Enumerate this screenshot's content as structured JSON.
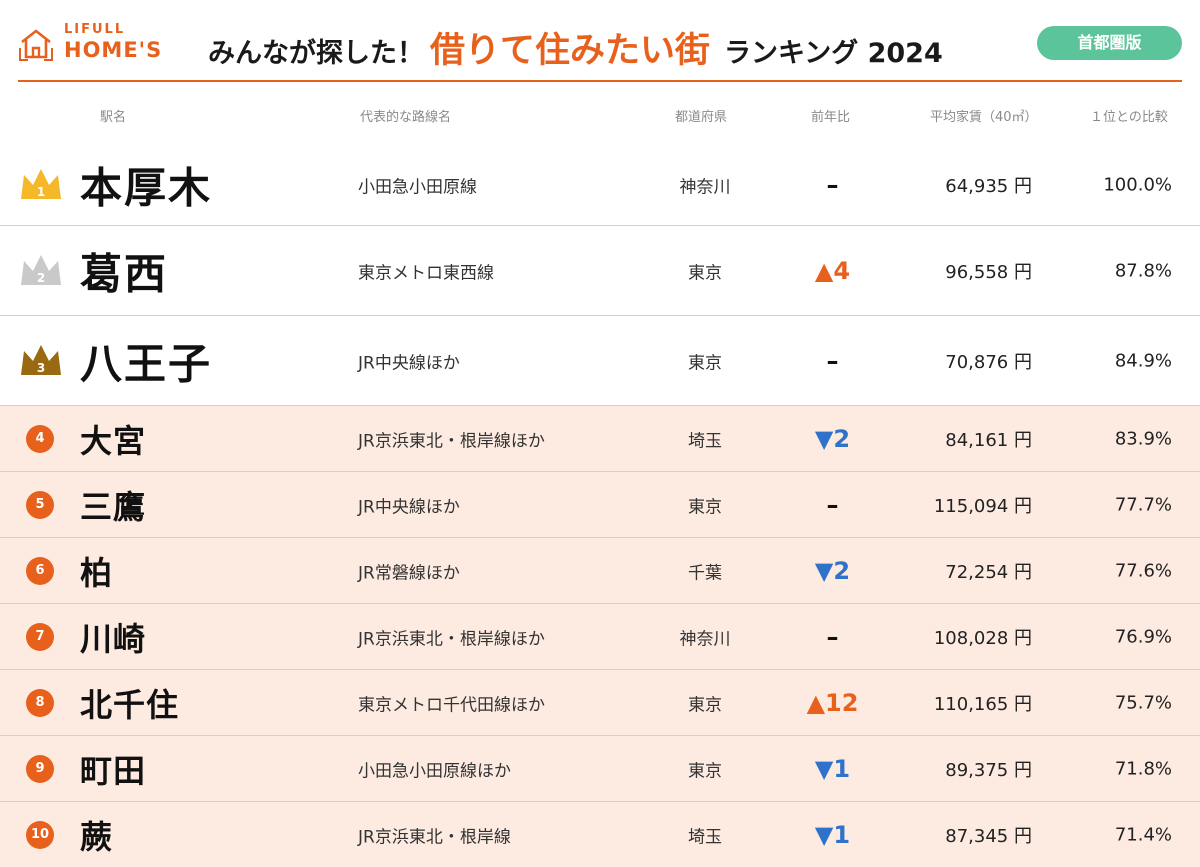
{
  "brand": {
    "small": "LIFULL",
    "big": "HOME'S"
  },
  "title": {
    "prefix": "みんなが探した！",
    "highlight": "借りて住みたい街",
    "suffix": "ランキング 2024"
  },
  "badge": "首都圏版",
  "columns": {
    "station": "駅名",
    "line": "代表的な路線名",
    "prefecture": "都道府県",
    "change": "前年比",
    "rent": "平均家賃（40㎡）",
    "ratio": "１位との比較"
  },
  "colors": {
    "accent": "#e8611c",
    "badge": "#5cc49a",
    "up": "#e8611c",
    "down": "#2f72c9",
    "gold": "#f5b829",
    "silver": "#c9c9c9",
    "bronze": "#9a6a12"
  },
  "rows": [
    {
      "rank": "1",
      "name": "本厚木",
      "line": "小田急小田原線",
      "prefecture": "神奈川",
      "change": "–",
      "trend": "same",
      "rent": "64,935 円",
      "ratio": "100.0%",
      "crown": "gold"
    },
    {
      "rank": "2",
      "name": "葛西",
      "line": "東京メトロ東西線",
      "prefecture": "東京",
      "change": "▲4",
      "trend": "up",
      "rent": "96,558 円",
      "ratio": "87.8%",
      "crown": "silver"
    },
    {
      "rank": "3",
      "name": "八王子",
      "line": "JR中央線ほか",
      "prefecture": "東京",
      "change": "–",
      "trend": "same",
      "rent": "70,876 円",
      "ratio": "84.9%",
      "crown": "bronze"
    },
    {
      "rank": "4",
      "name": "大宮",
      "line": "JR京浜東北・根岸線ほか",
      "prefecture": "埼玉",
      "change": "▼2",
      "trend": "down",
      "rent": "84,161 円",
      "ratio": "83.9%"
    },
    {
      "rank": "5",
      "name": "三鷹",
      "line": "JR中央線ほか",
      "prefecture": "東京",
      "change": "–",
      "trend": "same",
      "rent": "115,094 円",
      "ratio": "77.7%"
    },
    {
      "rank": "6",
      "name": "柏",
      "line": "JR常磐線ほか",
      "prefecture": "千葉",
      "change": "▼2",
      "trend": "down",
      "rent": "72,254 円",
      "ratio": "77.6%"
    },
    {
      "rank": "7",
      "name": "川崎",
      "line": "JR京浜東北・根岸線ほか",
      "prefecture": "神奈川",
      "change": "–",
      "trend": "same",
      "rent": "108,028 円",
      "ratio": "76.9%"
    },
    {
      "rank": "8",
      "name": "北千住",
      "line": "東京メトロ千代田線ほか",
      "prefecture": "東京",
      "change": "▲12",
      "trend": "up",
      "rent": "110,165 円",
      "ratio": "75.7%"
    },
    {
      "rank": "9",
      "name": "町田",
      "line": "小田急小田原線ほか",
      "prefecture": "東京",
      "change": "▼1",
      "trend": "down",
      "rent": "89,375 円",
      "ratio": "71.8%"
    },
    {
      "rank": "10",
      "name": "蕨",
      "line": "JR京浜東北・根岸線",
      "prefecture": "埼玉",
      "change": "▼1",
      "trend": "down",
      "rent": "87,345 円",
      "ratio": "71.4%"
    }
  ]
}
